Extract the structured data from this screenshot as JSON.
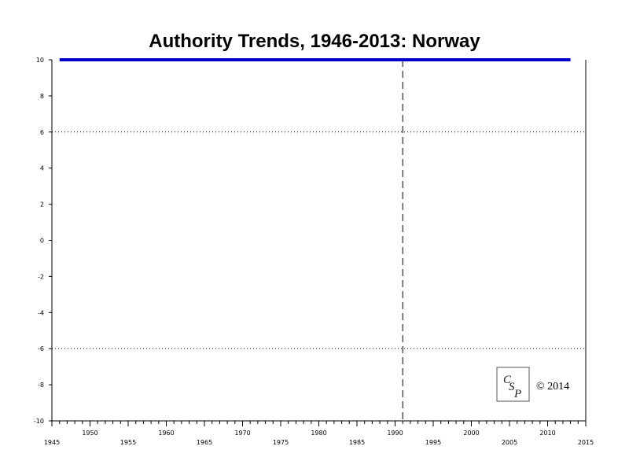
{
  "chart_data": {
    "type": "line",
    "title": "Authority Trends, 1946-2013: Norway",
    "xlabel": "",
    "ylabel": "",
    "xlim": [
      1945,
      2015
    ],
    "ylim": [
      -10,
      10
    ],
    "x_ticks_lower": [
      1945,
      1955,
      1965,
      1975,
      1985,
      1995,
      2005,
      2015
    ],
    "x_ticks_upper": [
      1950,
      1960,
      1970,
      1980,
      1990,
      2000,
      2010
    ],
    "y_ticks": [
      10,
      8,
      6,
      4,
      2,
      0,
      -2,
      -4,
      -6,
      -8,
      -10
    ],
    "reference_lines": {
      "horizontal_dotted": [
        6,
        -6
      ],
      "vertical_dashed": 1991
    },
    "grid": false,
    "series": [
      {
        "color": "#0000cc",
        "points": [
          [
            1946,
            10
          ],
          [
            2013,
            10
          ]
        ]
      }
    ]
  },
  "copyright": "© 2014",
  "logo": {
    "text": "CSP",
    "icon": "csp-logo-icon"
  }
}
